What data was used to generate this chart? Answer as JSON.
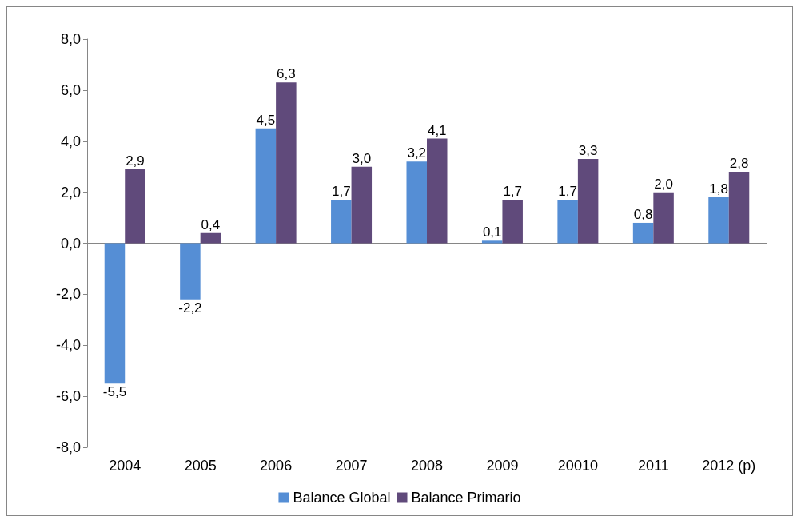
{
  "chart_data": {
    "type": "bar",
    "categories": [
      "2004",
      "2005",
      "2006",
      "2007",
      "2008",
      "2009",
      "20010",
      "2011",
      "2012 (p)"
    ],
    "series": [
      {
        "name": "Balance Global",
        "color": "#558ed5",
        "values": [
          -5.5,
          -2.2,
          4.5,
          1.7,
          3.2,
          0.1,
          1.7,
          0.8,
          1.8
        ],
        "value_labels": [
          "-5,5",
          "-2,2",
          "4,5",
          "1,7",
          "3,2",
          "0,1",
          "1,7",
          "0,8",
          "1,8"
        ]
      },
      {
        "name": "Balance Primario",
        "color": "#604a7b",
        "values": [
          2.9,
          0.4,
          6.3,
          3.0,
          4.1,
          1.7,
          3.3,
          2.0,
          2.8
        ],
        "value_labels": [
          "2,9",
          "0,4",
          "6,3",
          "3,0",
          "4,1",
          "1,7",
          "3,3",
          "2,0",
          "2,8"
        ]
      }
    ],
    "ylim": [
      -8,
      8
    ],
    "yticks": [
      {
        "value": -8,
        "label": "-8,0"
      },
      {
        "value": -6,
        "label": "-6,0"
      },
      {
        "value": -4,
        "label": "-4,0"
      },
      {
        "value": -2,
        "label": "-2,0"
      },
      {
        "value": 0,
        "label": "0,0"
      },
      {
        "value": 2,
        "label": "2,0"
      },
      {
        "value": 4,
        "label": "4,0"
      },
      {
        "value": 6,
        "label": "6,0"
      },
      {
        "value": 8,
        "label": "8,0"
      }
    ],
    "legend": "bottom"
  }
}
